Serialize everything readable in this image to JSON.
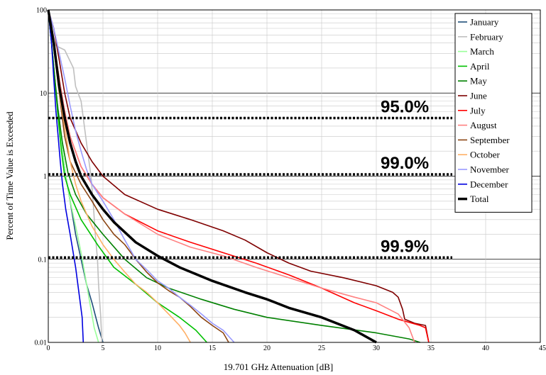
{
  "chart_data": {
    "type": "line",
    "title": "",
    "xlabel": "19.701 GHz Attenuation [dB]",
    "ylabel": "Percent of Time Value is Exceeded",
    "xlim": [
      0,
      45
    ],
    "ylim": [
      0.01,
      100
    ],
    "yscale": "log",
    "x_ticks": [
      "0",
      "5",
      "10",
      "15",
      "20",
      "25",
      "30",
      "35",
      "40",
      "45"
    ],
    "y_ticks": [
      "100",
      "10",
      "1",
      "0.1",
      "0.01"
    ],
    "grid": true,
    "legend_position": "top-right",
    "thresholds": [
      {
        "label": "95.0%",
        "y": 5
      },
      {
        "label": "99.0%",
        "y": 1.05
      },
      {
        "label": "99.9%",
        "y": 0.105
      }
    ],
    "series": [
      {
        "name": "January",
        "color": "#1f4e79",
        "width": 1.6,
        "points": [
          [
            0,
            100
          ],
          [
            0.3,
            40
          ],
          [
            0.5,
            20
          ],
          [
            0.7,
            10
          ],
          [
            1.0,
            5
          ],
          [
            1.3,
            2
          ],
          [
            1.6,
            1
          ],
          [
            2.0,
            0.5
          ],
          [
            2.5,
            0.2
          ],
          [
            3.0,
            0.1
          ],
          [
            3.5,
            0.05
          ],
          [
            4.0,
            0.03
          ],
          [
            4.6,
            0.015
          ],
          [
            5.0,
            0.01
          ]
        ]
      },
      {
        "name": "February",
        "color": "#bfbfbf",
        "width": 1.6,
        "points": [
          [
            0,
            100
          ],
          [
            0.3,
            50
          ],
          [
            0.7,
            37
          ],
          [
            1.5,
            33
          ],
          [
            2.3,
            20
          ],
          [
            2.5,
            12
          ],
          [
            3.0,
            8
          ],
          [
            3.3,
            4
          ],
          [
            3.6,
            2
          ],
          [
            3.9,
            1
          ],
          [
            4.1,
            0.5
          ],
          [
            4.3,
            0.2
          ],
          [
            4.5,
            0.1
          ],
          [
            4.6,
            0.05
          ],
          [
            4.8,
            0.02
          ],
          [
            4.9,
            0.01
          ]
        ]
      },
      {
        "name": "March",
        "color": "#99ff99",
        "width": 1.6,
        "points": [
          [
            0,
            100
          ],
          [
            0.3,
            40
          ],
          [
            0.6,
            15
          ],
          [
            0.9,
            6
          ],
          [
            1.2,
            2.5
          ],
          [
            1.6,
            1
          ],
          [
            2.0,
            0.5
          ],
          [
            2.5,
            0.25
          ],
          [
            3.0,
            0.12
          ],
          [
            3.4,
            0.06
          ],
          [
            3.8,
            0.03
          ],
          [
            4.2,
            0.015
          ],
          [
            4.6,
            0.01
          ]
        ]
      },
      {
        "name": "April",
        "color": "#00c000",
        "width": 1.6,
        "points": [
          [
            0,
            100
          ],
          [
            0.3,
            40
          ],
          [
            0.6,
            15
          ],
          [
            0.9,
            5
          ],
          [
            1.2,
            2
          ],
          [
            1.5,
            1
          ],
          [
            2.0,
            0.6
          ],
          [
            3.0,
            0.3
          ],
          [
            4.5,
            0.15
          ],
          [
            6,
            0.08
          ],
          [
            8,
            0.05
          ],
          [
            10,
            0.03
          ],
          [
            12,
            0.02
          ],
          [
            13.5,
            0.014
          ],
          [
            14.5,
            0.01
          ]
        ]
      },
      {
        "name": "May",
        "color": "#008000",
        "width": 1.6,
        "points": [
          [
            0,
            100
          ],
          [
            0.3,
            40
          ],
          [
            0.6,
            15
          ],
          [
            0.9,
            6
          ],
          [
            1.3,
            2.5
          ],
          [
            1.8,
            1.1
          ],
          [
            2.5,
            0.6
          ],
          [
            3.5,
            0.35
          ],
          [
            5,
            0.2
          ],
          [
            7,
            0.1
          ],
          [
            9,
            0.06
          ],
          [
            11,
            0.045
          ],
          [
            14,
            0.033
          ],
          [
            17,
            0.025
          ],
          [
            20,
            0.02
          ],
          [
            25,
            0.016
          ],
          [
            30,
            0.013
          ],
          [
            33,
            0.011
          ],
          [
            34,
            0.01
          ]
        ]
      },
      {
        "name": "June",
        "color": "#7f0000",
        "width": 1.6,
        "points": [
          [
            0,
            100
          ],
          [
            0.5,
            60
          ],
          [
            1,
            25
          ],
          [
            1.5,
            10
          ],
          [
            2,
            5
          ],
          [
            3,
            2.5
          ],
          [
            4,
            1.5
          ],
          [
            5,
            1
          ],
          [
            7,
            0.6
          ],
          [
            10,
            0.4
          ],
          [
            13,
            0.3
          ],
          [
            16,
            0.22
          ],
          [
            18,
            0.17
          ],
          [
            20,
            0.12
          ],
          [
            22,
            0.09
          ],
          [
            24,
            0.072
          ],
          [
            27,
            0.06
          ],
          [
            30,
            0.048
          ],
          [
            31.5,
            0.04
          ],
          [
            32,
            0.035
          ],
          [
            32.4,
            0.025
          ],
          [
            32.6,
            0.019
          ],
          [
            33.5,
            0.017
          ],
          [
            34.5,
            0.016
          ],
          [
            34.8,
            0.01
          ]
        ]
      },
      {
        "name": "July",
        "color": "#ff0000",
        "width": 1.6,
        "points": [
          [
            0,
            100
          ],
          [
            0.5,
            40
          ],
          [
            1,
            15
          ],
          [
            1.5,
            6
          ],
          [
            2,
            3
          ],
          [
            3,
            1.3
          ],
          [
            4,
            0.8
          ],
          [
            5,
            0.55
          ],
          [
            7,
            0.35
          ],
          [
            10,
            0.22
          ],
          [
            13,
            0.16
          ],
          [
            16,
            0.12
          ],
          [
            19,
            0.09
          ],
          [
            22,
            0.065
          ],
          [
            25,
            0.045
          ],
          [
            28,
            0.03
          ],
          [
            30,
            0.024
          ],
          [
            32,
            0.019
          ],
          [
            34,
            0.016
          ],
          [
            34.5,
            0.015
          ],
          [
            34.8,
            0.01
          ]
        ]
      },
      {
        "name": "August",
        "color": "#ff8080",
        "width": 1.6,
        "points": [
          [
            0,
            100
          ],
          [
            0.5,
            40
          ],
          [
            1,
            15
          ],
          [
            1.5,
            6
          ],
          [
            2,
            3
          ],
          [
            3,
            1.3
          ],
          [
            4,
            0.8
          ],
          [
            5,
            0.55
          ],
          [
            7,
            0.35
          ],
          [
            10,
            0.2
          ],
          [
            13,
            0.14
          ],
          [
            16,
            0.11
          ],
          [
            19,
            0.08
          ],
          [
            22,
            0.06
          ],
          [
            25,
            0.045
          ],
          [
            28,
            0.035
          ],
          [
            30,
            0.03
          ],
          [
            32,
            0.022
          ],
          [
            33,
            0.015
          ],
          [
            33.5,
            0.01
          ]
        ]
      },
      {
        "name": "September",
        "color": "#8b4513",
        "width": 1.6,
        "points": [
          [
            0,
            100
          ],
          [
            0.5,
            40
          ],
          [
            1,
            10
          ],
          [
            1.5,
            3
          ],
          [
            2,
            1.5
          ],
          [
            3,
            0.8
          ],
          [
            4,
            0.5
          ],
          [
            5,
            0.3
          ],
          [
            6,
            0.2
          ],
          [
            7,
            0.15
          ],
          [
            8,
            0.1
          ],
          [
            9,
            0.07
          ],
          [
            10,
            0.052
          ],
          [
            11,
            0.042
          ],
          [
            12,
            0.035
          ],
          [
            13,
            0.027
          ],
          [
            14,
            0.02
          ],
          [
            15,
            0.016
          ],
          [
            16,
            0.013
          ],
          [
            16.5,
            0.01
          ]
        ]
      },
      {
        "name": "October",
        "color": "#ffb066",
        "width": 1.6,
        "points": [
          [
            0,
            100
          ],
          [
            0.5,
            35
          ],
          [
            1,
            10
          ],
          [
            1.5,
            4
          ],
          [
            2,
            1.5
          ],
          [
            2.5,
            0.8
          ],
          [
            3,
            0.5
          ],
          [
            4,
            0.25
          ],
          [
            5,
            0.15
          ],
          [
            6,
            0.1
          ],
          [
            7,
            0.07
          ],
          [
            8,
            0.05
          ],
          [
            9,
            0.04
          ],
          [
            10,
            0.03
          ],
          [
            11,
            0.022
          ],
          [
            12,
            0.016
          ],
          [
            12.5,
            0.013
          ],
          [
            13,
            0.01
          ]
        ]
      },
      {
        "name": "November",
        "color": "#9999ff",
        "width": 1.6,
        "points": [
          [
            0,
            100
          ],
          [
            0.5,
            60
          ],
          [
            1,
            30
          ],
          [
            1.5,
            15
          ],
          [
            2,
            7
          ],
          [
            2.5,
            3.5
          ],
          [
            3,
            2
          ],
          [
            3.5,
            1.2
          ],
          [
            4,
            0.8
          ],
          [
            5,
            0.5
          ],
          [
            6,
            0.3
          ],
          [
            7,
            0.17
          ],
          [
            8,
            0.1
          ],
          [
            9,
            0.075
          ],
          [
            10,
            0.055
          ],
          [
            11,
            0.045
          ],
          [
            12,
            0.035
          ],
          [
            13,
            0.028
          ],
          [
            14,
            0.022
          ],
          [
            15,
            0.017
          ],
          [
            16,
            0.014
          ],
          [
            17,
            0.01
          ]
        ]
      },
      {
        "name": "December",
        "color": "#0000e0",
        "width": 1.6,
        "points": [
          [
            0,
            100
          ],
          [
            0.3,
            40
          ],
          [
            0.5,
            15
          ],
          [
            0.7,
            6
          ],
          [
            0.9,
            3
          ],
          [
            1.1,
            1.5
          ],
          [
            1.3,
            0.8
          ],
          [
            1.6,
            0.4
          ],
          [
            2.0,
            0.2
          ],
          [
            2.5,
            0.08
          ],
          [
            2.8,
            0.04
          ],
          [
            3.1,
            0.02
          ],
          [
            3.2,
            0.01
          ]
        ]
      },
      {
        "name": "Total",
        "color": "#000000",
        "width": 3.5,
        "points": [
          [
            0,
            100
          ],
          [
            0.5,
            40
          ],
          [
            1,
            12
          ],
          [
            1.5,
            5
          ],
          [
            2,
            2.5
          ],
          [
            2.5,
            1.5
          ],
          [
            3,
            1.0
          ],
          [
            4,
            0.6
          ],
          [
            5,
            0.4
          ],
          [
            6,
            0.28
          ],
          [
            8,
            0.16
          ],
          [
            10,
            0.11
          ],
          [
            12,
            0.08
          ],
          [
            15,
            0.055
          ],
          [
            18,
            0.04
          ],
          [
            20,
            0.033
          ],
          [
            22,
            0.026
          ],
          [
            25,
            0.02
          ],
          [
            28,
            0.014
          ],
          [
            30,
            0.01
          ]
        ]
      }
    ]
  }
}
